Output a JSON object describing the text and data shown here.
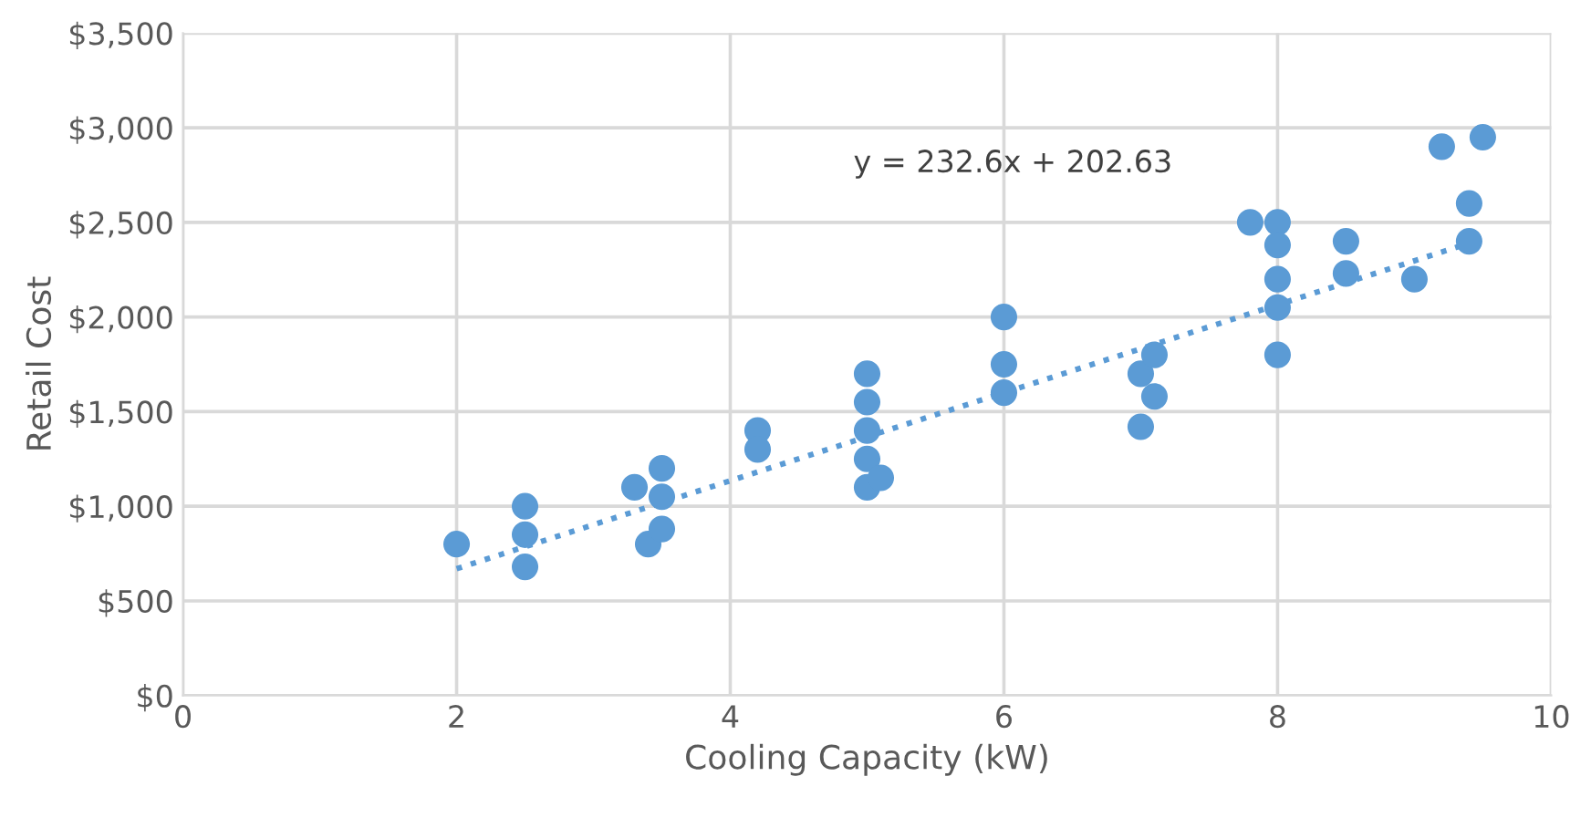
{
  "chart_data": {
    "type": "scatter",
    "xlabel": "Cooling Capacity (kW)",
    "ylabel": "Retail Cost",
    "xlim": [
      0,
      10
    ],
    "xticks": [
      0,
      2,
      4,
      6,
      8,
      10
    ],
    "ylim": [
      0,
      3500
    ],
    "yticks": [
      {
        "value": 0,
        "label": "$0"
      },
      {
        "value": 500,
        "label": "$500"
      },
      {
        "value": 1000,
        "label": "$1,000"
      },
      {
        "value": 1500,
        "label": "$1,500"
      },
      {
        "value": 2000,
        "label": "$2,000"
      },
      {
        "value": 2500,
        "label": "$2,500"
      },
      {
        "value": 3000,
        "label": "$3,000"
      },
      {
        "value": 3500,
        "label": "$3,500"
      }
    ],
    "grid": true,
    "marker": "circle",
    "annotations": [
      "y = 232.6x + 202.63"
    ],
    "series": [
      {
        "color": "#5b9bd5",
        "x": [
          2,
          2.5,
          2.5,
          2.5,
          3.3,
          3.4,
          3.5,
          3.5,
          3.5,
          4.2,
          4.2,
          5,
          5,
          5,
          5,
          5,
          5.1,
          6,
          6,
          6,
          7,
          7,
          7.1,
          7.1,
          7.8,
          8,
          8,
          8,
          8,
          8,
          8.5,
          8.5,
          9,
          9.2,
          9.4,
          9.4,
          9.5
        ],
        "values": [
          800,
          1000,
          850,
          680,
          1100,
          800,
          1200,
          1050,
          880,
          1400,
          1300,
          1700,
          1550,
          1400,
          1250,
          1100,
          1150,
          2000,
          1750,
          1600,
          1700,
          1420,
          1800,
          1580,
          2500,
          2500,
          2380,
          2200,
          2050,
          1800,
          2400,
          2230,
          2200,
          2900,
          2600,
          2400,
          2950
        ]
      },
      {
        "type": "line",
        "color": "#5b9bd5",
        "line_style": "dotted",
        "marker": "none",
        "x": [
          2,
          9.4
        ],
        "values": [
          670,
          2390
        ]
      }
    ]
  }
}
